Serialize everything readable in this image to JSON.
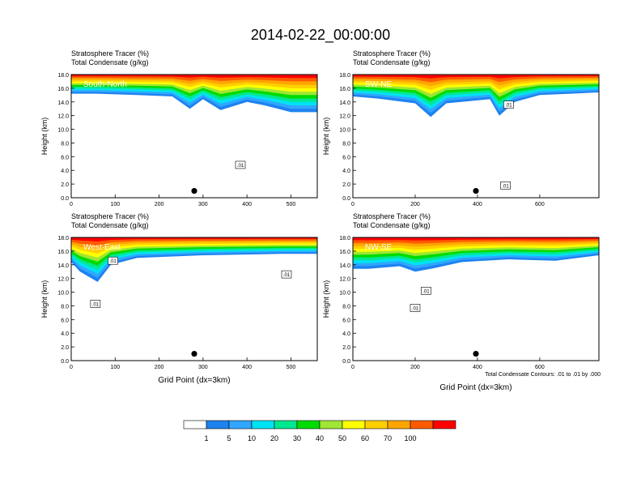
{
  "title": "2014-02-22_00:00:00",
  "chart_data": [
    {
      "type": "heatmap",
      "label": "South-North",
      "title_lines": [
        "Stratosphere Tracer   (%)",
        "Total Condensate   (g/kg)"
      ],
      "ylabel": "Height (km)",
      "xlabel": "",
      "xlim": [
        0,
        560
      ],
      "ylim": [
        0,
        18
      ],
      "xticks": [
        0,
        100,
        200,
        300,
        400,
        500
      ],
      "yticks": [
        0,
        2,
        4,
        6,
        8,
        10,
        12,
        14,
        16,
        18
      ],
      "marker": {
        "x": 280,
        "y": 1.0
      },
      "contour_labels": [
        {
          "text": ".01",
          "x": 385,
          "y": 4.8
        }
      ],
      "tracer_base": [
        {
          "x": 0,
          "y": 15.2
        },
        {
          "x": 60,
          "y": 15.2
        },
        {
          "x": 150,
          "y": 15.0
        },
        {
          "x": 230,
          "y": 14.8
        },
        {
          "x": 270,
          "y": 13.0
        },
        {
          "x": 300,
          "y": 14.4
        },
        {
          "x": 340,
          "y": 12.8
        },
        {
          "x": 400,
          "y": 14.0
        },
        {
          "x": 440,
          "y": 13.5
        },
        {
          "x": 500,
          "y": 12.5
        },
        {
          "x": 560,
          "y": 12.5
        }
      ]
    },
    {
      "type": "heatmap",
      "label": "SW-NE",
      "title_lines": [
        "Stratosphere Tracer   (%)",
        "Total Condensate   (g/kg)"
      ],
      "ylabel": "Height (km)",
      "xlabel": "",
      "xlim": [
        0,
        790
      ],
      "ylim": [
        0,
        18
      ],
      "xticks": [
        0,
        200,
        400,
        600
      ],
      "yticks": [
        0,
        2,
        4,
        6,
        8,
        10,
        12,
        14,
        16,
        18
      ],
      "marker": {
        "x": 395,
        "y": 1.0
      },
      "contour_labels": [
        {
          "text": ".01",
          "x": 500,
          "y": 13.6
        },
        {
          "text": ".01",
          "x": 490,
          "y": 1.8
        }
      ],
      "tracer_base": [
        {
          "x": 0,
          "y": 14.8
        },
        {
          "x": 80,
          "y": 14.5
        },
        {
          "x": 200,
          "y": 13.8
        },
        {
          "x": 250,
          "y": 11.8
        },
        {
          "x": 300,
          "y": 13.8
        },
        {
          "x": 440,
          "y": 14.4
        },
        {
          "x": 470,
          "y": 12.0
        },
        {
          "x": 520,
          "y": 14.0
        },
        {
          "x": 600,
          "y": 15.0
        },
        {
          "x": 700,
          "y": 15.2
        },
        {
          "x": 790,
          "y": 15.4
        }
      ]
    },
    {
      "type": "heatmap",
      "label": "West-East",
      "title_lines": [
        "Stratosphere Tracer   (%)",
        "Total Condensate   (g/kg)"
      ],
      "ylabel": "Height (km)",
      "xlabel": "Grid Point (dx=3km)",
      "xlim": [
        0,
        560
      ],
      "ylim": [
        0,
        18
      ],
      "xticks": [
        0,
        100,
        200,
        300,
        400,
        500
      ],
      "yticks": [
        0,
        2,
        4,
        6,
        8,
        10,
        12,
        14,
        16,
        18
      ],
      "marker": {
        "x": 280,
        "y": 1.0
      },
      "contour_labels": [
        {
          "text": ".01",
          "x": 95,
          "y": 14.6
        },
        {
          "text": ".01",
          "x": 55,
          "y": 8.3
        },
        {
          "text": ".01",
          "x": 490,
          "y": 12.6
        }
      ],
      "tracer_base": [
        {
          "x": 0,
          "y": 14.4
        },
        {
          "x": 20,
          "y": 13.0
        },
        {
          "x": 60,
          "y": 11.5
        },
        {
          "x": 90,
          "y": 14.0
        },
        {
          "x": 150,
          "y": 15.0
        },
        {
          "x": 300,
          "y": 15.4
        },
        {
          "x": 480,
          "y": 15.6
        },
        {
          "x": 560,
          "y": 15.6
        }
      ]
    },
    {
      "type": "heatmap",
      "label": "NW-SE",
      "title_lines": [
        "Stratosphere Tracer   (%)",
        "Total Condensate   (g/kg)"
      ],
      "ylabel": "Height (km)",
      "xlabel": "Grid Point (dx=3km)",
      "xlim": [
        0,
        790
      ],
      "ylim": [
        0,
        18
      ],
      "xticks": [
        0,
        200,
        400,
        600
      ],
      "yticks": [
        0,
        2,
        4,
        6,
        8,
        10,
        12,
        14,
        16,
        18
      ],
      "marker": {
        "x": 395,
        "y": 1.0
      },
      "contour_labels": [
        {
          "text": ".01",
          "x": 235,
          "y": 10.2
        },
        {
          "text": ".01",
          "x": 200,
          "y": 7.7
        }
      ],
      "footnote": "Total Condensate Contours: .01 to .01 by .000",
      "tracer_base": [
        {
          "x": 0,
          "y": 13.4
        },
        {
          "x": 50,
          "y": 13.4
        },
        {
          "x": 150,
          "y": 13.8
        },
        {
          "x": 200,
          "y": 13.0
        },
        {
          "x": 260,
          "y": 13.5
        },
        {
          "x": 350,
          "y": 14.4
        },
        {
          "x": 500,
          "y": 14.8
        },
        {
          "x": 650,
          "y": 14.6
        },
        {
          "x": 790,
          "y": 15.4
        }
      ]
    }
  ],
  "colorbar": {
    "labels": [
      "1",
      "5",
      "10",
      "20",
      "30",
      "40",
      "50",
      "60",
      "70",
      "100"
    ],
    "colors": [
      "#ffffff",
      "#1e82f0",
      "#30a6ff",
      "#00e3f3",
      "#00e890",
      "#00dc00",
      "#a0e632",
      "#ffff00",
      "#ffcf00",
      "#ffa500",
      "#ff5a00",
      "#ff0000"
    ]
  }
}
